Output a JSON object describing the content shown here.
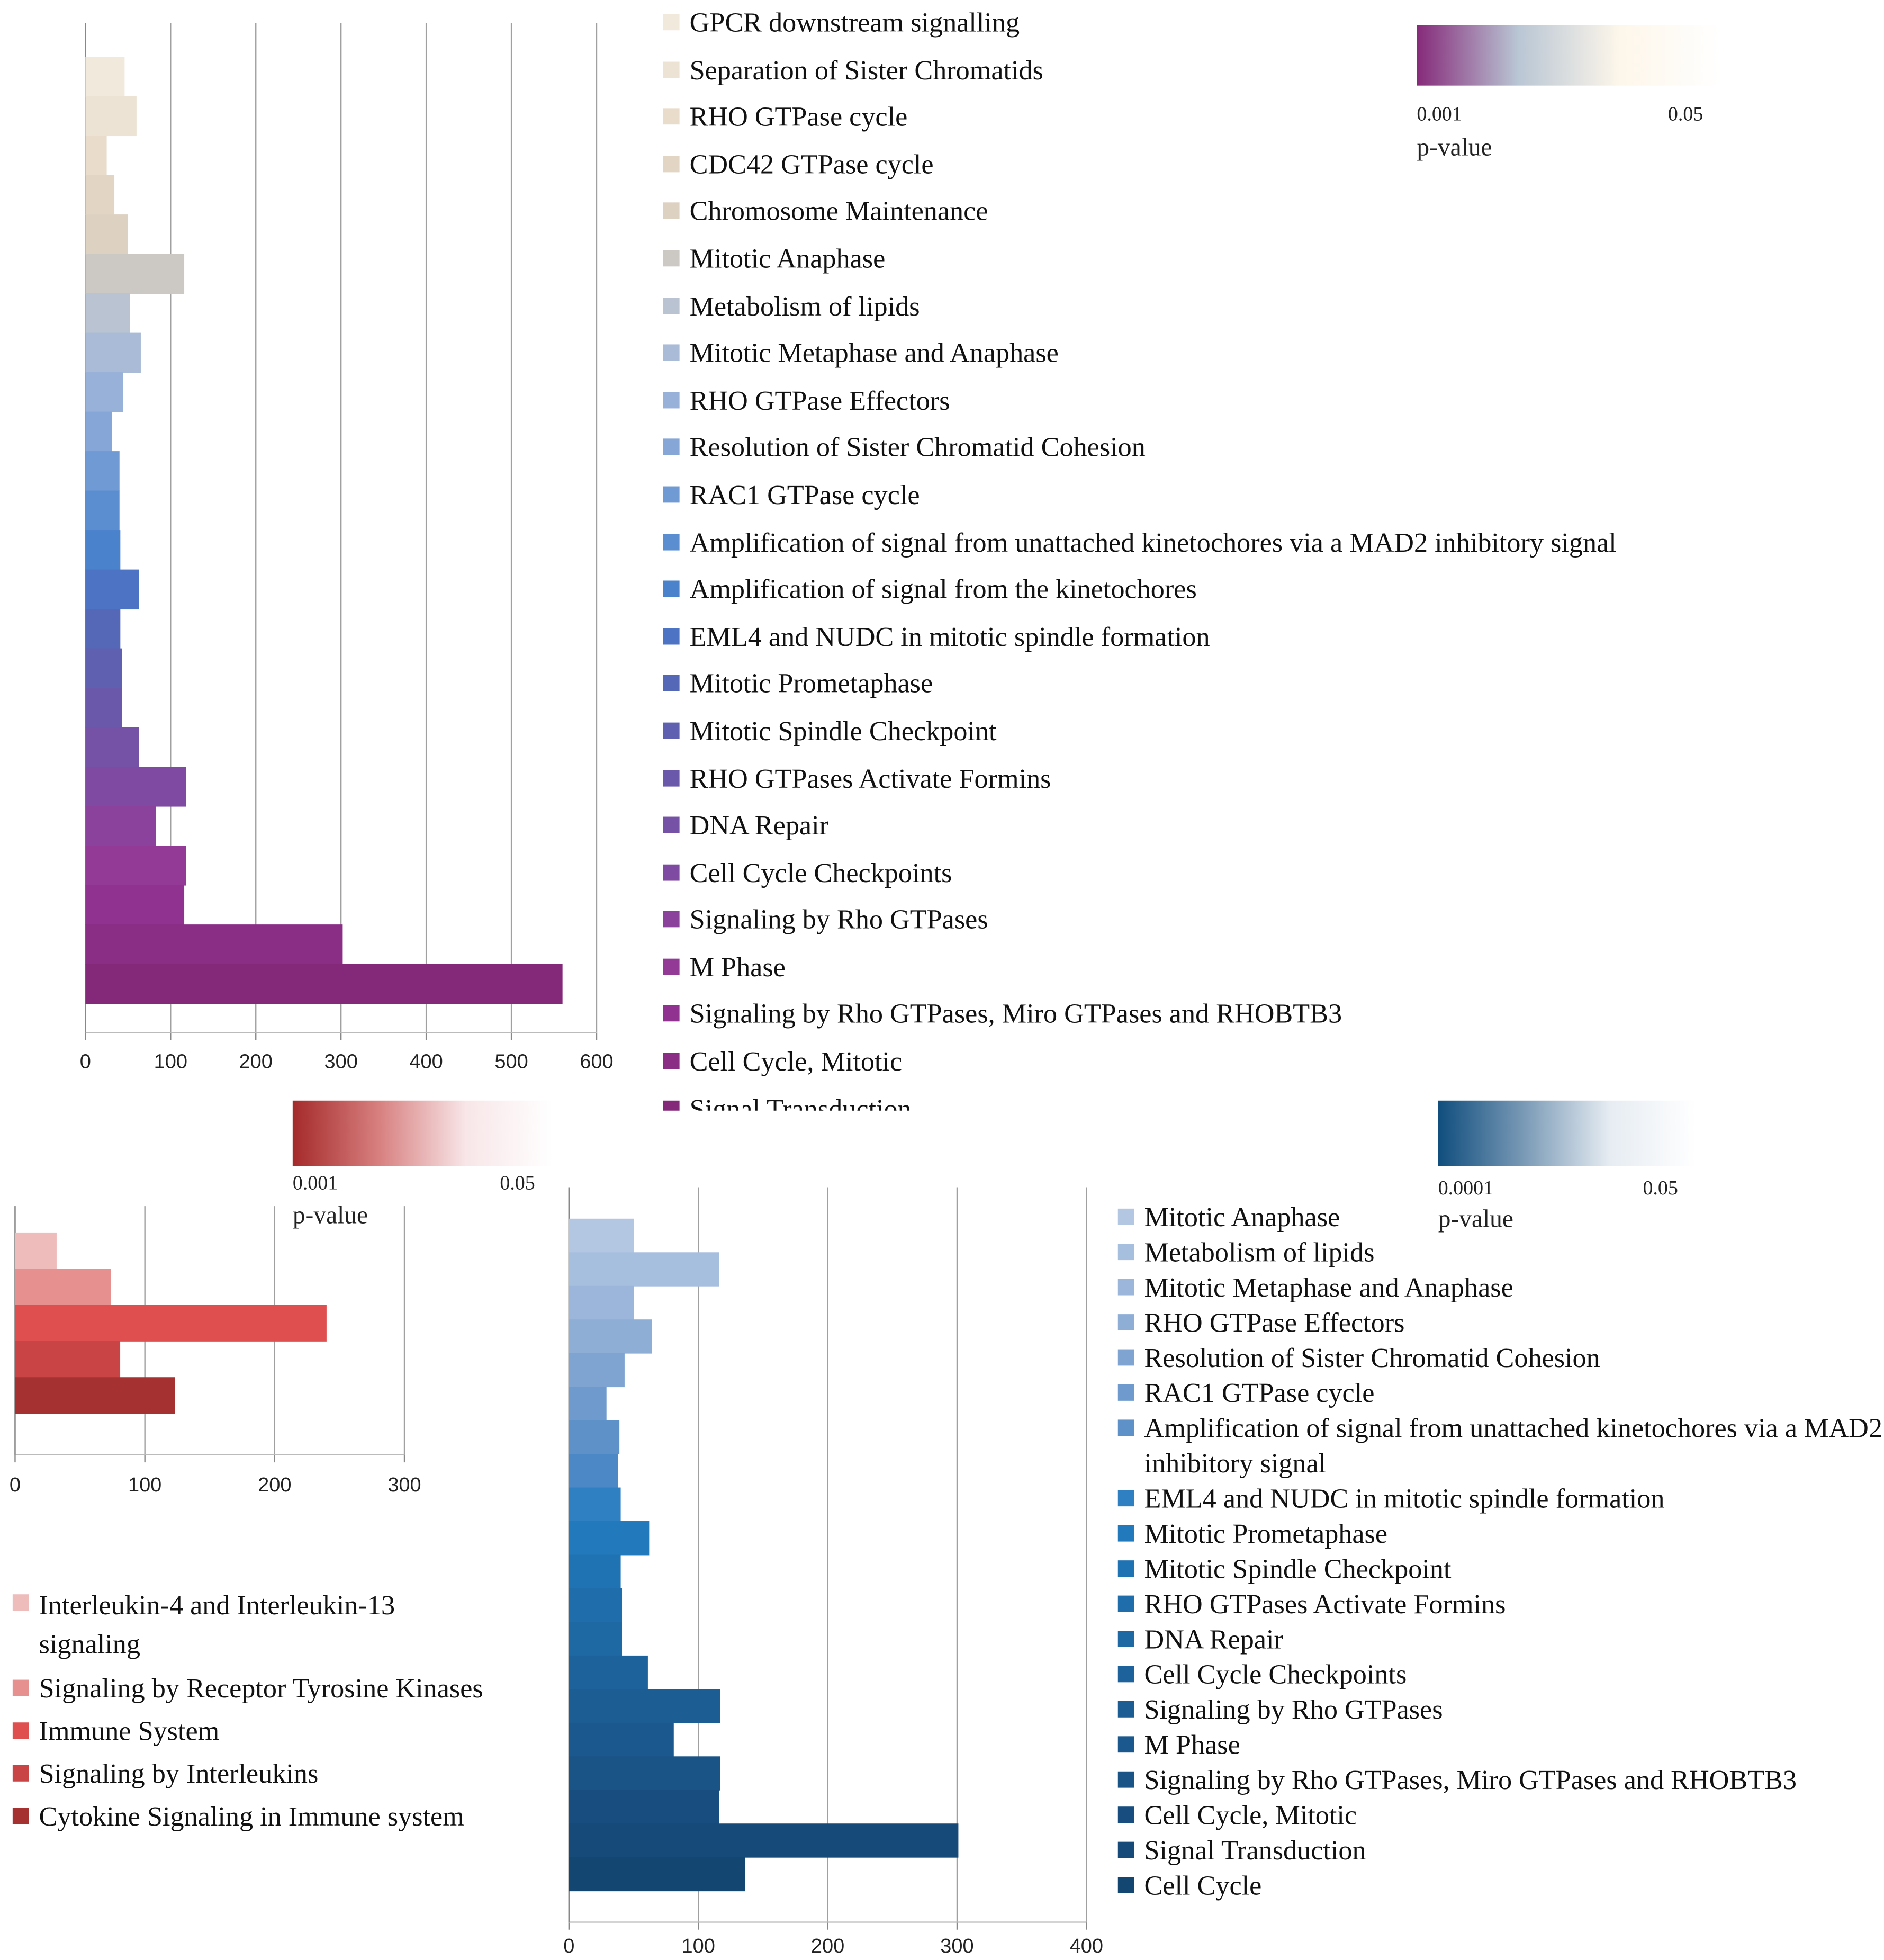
{
  "chart_data": [
    {
      "type": "bar",
      "orientation": "horizontal",
      "categories": [
        "GPCR downstream signalling",
        "Separation of Sister Chromatids",
        "RHO GTPase cycle",
        "CDC42 GTPase cycle",
        "Chromosome Maintenance",
        "Mitotic Anaphase",
        "Metabolism of lipids",
        "Mitotic Metaphase and Anaphase",
        "RHO GTPase Effectors",
        "Resolution of Sister Chromatid Cohesion",
        "RAC1 GTPase cycle",
        "Amplification of signal from unattached kinetochores via a MAD2 inhibitory signal",
        "Amplification of signal from the kinetochores",
        "EML4 and NUDC in mitotic spindle formation",
        "Mitotic Prometaphase",
        "Mitotic Spindle Checkpoint",
        "RHO GTPases Activate Formins",
        "DNA Repair",
        "Cell Cycle Checkpoints",
        "Signaling by Rho GTPases",
        "M Phase",
        "Signaling by Rho GTPases, Miro GTPases and RHOBTB3",
        "Cell Cycle, Mitotic",
        "Signal Transduction"
      ],
      "values": [
        46,
        60,
        25,
        34,
        50,
        116,
        52,
        65,
        44,
        31,
        40,
        40,
        41,
        63,
        41,
        43,
        43,
        63,
        118,
        83,
        118,
        116,
        302,
        560
      ],
      "colors": [
        "#f2e9dd",
        "#ede3d4",
        "#e9dccb",
        "#e3d5c4",
        "#ddd2c2",
        "#ccc8c4",
        "#b9c3d2",
        "#a9bbd6",
        "#98b1d9",
        "#85a6d6",
        "#6f9ad3",
        "#5a8ed0",
        "#4b82cc",
        "#4d73c4",
        "#5568b8",
        "#6060b0",
        "#6a59aa",
        "#7552a6",
        "#7f4aa2",
        "#8a429c",
        "#923a96",
        "#8f3290",
        "#8a2d84",
        "#84297a"
      ],
      "xlim": [
        0,
        600
      ],
      "xticks": [
        0,
        100,
        200,
        300,
        400,
        500,
        600
      ],
      "grid": true,
      "colorbar": {
        "colors": [
          "#862a7a",
          "#b9c6d4",
          "#fdf6ea",
          "#ffffff"
        ],
        "labels": [
          "0.001",
          "0.05"
        ],
        "title": "p-value"
      }
    },
    {
      "type": "bar",
      "orientation": "horizontal",
      "categories": [
        "Interleukin-4 and Interleukin-13 signaling",
        "Signaling by Receptor Tyrosine Kinases",
        "Immune System",
        "Signaling by Interleukins",
        "Cytokine Signaling in Immune system"
      ],
      "values": [
        32,
        74,
        240,
        81,
        123
      ],
      "colors": [
        "#efbcbc",
        "#e69090",
        "#df4f4f",
        "#c94545",
        "#a63131"
      ],
      "xlim": [
        0,
        300
      ],
      "xticks": [
        0,
        100,
        200,
        300
      ],
      "grid": true,
      "colorbar": {
        "colors": [
          "#a52a2a",
          "#d88080",
          "#f8e6e8",
          "#ffffff"
        ],
        "labels": [
          "0.001",
          "0.05"
        ],
        "title": "p-value"
      }
    },
    {
      "type": "bar",
      "orientation": "horizontal",
      "categories": [
        "Mitotic Anaphase",
        "Metabolism of lipids",
        "Mitotic Metaphase and Anaphase",
        "RHO GTPase Effectors",
        "Resolution of Sister Chromatid Cohesion",
        "RAC1 GTPase cycle",
        "Amplification of signal from unattached kinetochores via a MAD2 inhibitory signal",
        null,
        "EML4 and NUDC in mitotic spindle formation",
        "Mitotic Prometaphase",
        "Mitotic Spindle Checkpoint",
        "RHO GTPases Activate Formins",
        "DNA Repair",
        "Cell Cycle Checkpoints",
        "Signaling by Rho GTPases",
        "M Phase",
        "Signaling by Rho GTPases, Miro GTPases and RHOBTB3",
        "Cell Cycle, Mitotic",
        "Signal Transduction",
        "Cell Cycle"
      ],
      "values": [
        50,
        116,
        50,
        64,
        43,
        29,
        39,
        38,
        40,
        62,
        40,
        41,
        41,
        61,
        117,
        81,
        117,
        116,
        301,
        136
      ],
      "colors": [
        "#b3c6e2",
        "#a7bfde",
        "#9bb6da",
        "#8eaed6",
        "#7fa4d1",
        "#6f9acd",
        "#5f91c9",
        "#4d88c6",
        "#2f80c2",
        "#2279bb",
        "#2073b3",
        "#1f6dab",
        "#1e68a3",
        "#1d629b",
        "#1c5d94",
        "#1b588d",
        "#1a5386",
        "#184e7f",
        "#164a78",
        "#134670"
      ],
      "xlim": [
        0,
        400
      ],
      "xticks": [
        0,
        100,
        200,
        300,
        400
      ],
      "grid": true,
      "colorbar": {
        "colors": [
          "#104e7e",
          "#7a9ab6",
          "#e6ecf2",
          "#ffffff"
        ],
        "labels": [
          "0.0001",
          "0.05"
        ],
        "title": "p-value"
      }
    }
  ]
}
